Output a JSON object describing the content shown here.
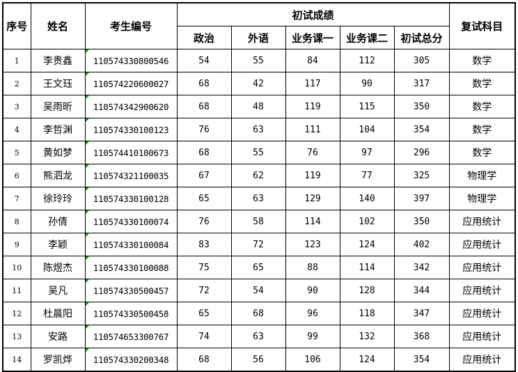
{
  "headers": {
    "seq": "序号",
    "name": "姓名",
    "id": "考生编号",
    "prelim_group": "初试成绩",
    "politics": "政治",
    "foreign_lang": "外语",
    "course1": "业务课一",
    "course2": "业务课二",
    "total": "初试总分",
    "retest_subject": "复试科目"
  },
  "flag_color": "#1a8a1a",
  "rows": [
    {
      "seq": "1",
      "name": "李贵鑫",
      "id": "110574330800546",
      "politics": "54",
      "foreign_lang": "55",
      "course1": "84",
      "course2": "112",
      "total": "305",
      "subject": "数学"
    },
    {
      "seq": "2",
      "name": "王文珏",
      "id": "110574220600027",
      "politics": "68",
      "foreign_lang": "42",
      "course1": "117",
      "course2": "90",
      "total": "317",
      "subject": "数学"
    },
    {
      "seq": "3",
      "name": "吴雨昕",
      "id": "110574342900620",
      "politics": "68",
      "foreign_lang": "48",
      "course1": "119",
      "course2": "115",
      "total": "350",
      "subject": "数学"
    },
    {
      "seq": "4",
      "name": "李哲渊",
      "id": "110574330100123",
      "politics": "76",
      "foreign_lang": "63",
      "course1": "111",
      "course2": "104",
      "total": "354",
      "subject": "数学"
    },
    {
      "seq": "5",
      "name": "黄如梦",
      "id": "110574410100673",
      "politics": "68",
      "foreign_lang": "55",
      "course1": "76",
      "course2": "97",
      "total": "296",
      "subject": "数学"
    },
    {
      "seq": "6",
      "name": "熊泗龙",
      "id": "110574321100035",
      "politics": "67",
      "foreign_lang": "62",
      "course1": "119",
      "course2": "77",
      "total": "325",
      "subject": "物理学"
    },
    {
      "seq": "7",
      "name": "徐玲玲",
      "id": "110574330100128",
      "politics": "65",
      "foreign_lang": "63",
      "course1": "129",
      "course2": "140",
      "total": "397",
      "subject": "物理学"
    },
    {
      "seq": "8",
      "name": "孙倩",
      "id": "110574330100074",
      "politics": "76",
      "foreign_lang": "58",
      "course1": "114",
      "course2": "102",
      "total": "350",
      "subject": "应用统计"
    },
    {
      "seq": "9",
      "name": "李颖",
      "id": "110574330100084",
      "politics": "83",
      "foreign_lang": "72",
      "course1": "123",
      "course2": "124",
      "total": "402",
      "subject": "应用统计"
    },
    {
      "seq": "10",
      "name": "陈煜杰",
      "id": "110574330100088",
      "politics": "75",
      "foreign_lang": "65",
      "course1": "88",
      "course2": "114",
      "total": "342",
      "subject": "应用统计"
    },
    {
      "seq": "11",
      "name": "吴凡",
      "id": "110574330500457",
      "politics": "72",
      "foreign_lang": "54",
      "course1": "90",
      "course2": "128",
      "total": "344",
      "subject": "应用统计"
    },
    {
      "seq": "12",
      "name": "杜晨阳",
      "id": "110574330500458",
      "politics": "65",
      "foreign_lang": "68",
      "course1": "96",
      "course2": "118",
      "total": "347",
      "subject": "应用统计"
    },
    {
      "seq": "13",
      "name": "安路",
      "id": "110574653300767",
      "politics": "74",
      "foreign_lang": "63",
      "course1": "99",
      "course2": "132",
      "total": "368",
      "subject": "应用统计"
    },
    {
      "seq": "14",
      "name": "罗凯烨",
      "id": "110574330200348",
      "politics": "68",
      "foreign_lang": "56",
      "course1": "106",
      "course2": "124",
      "total": "354",
      "subject": "应用统计"
    }
  ]
}
